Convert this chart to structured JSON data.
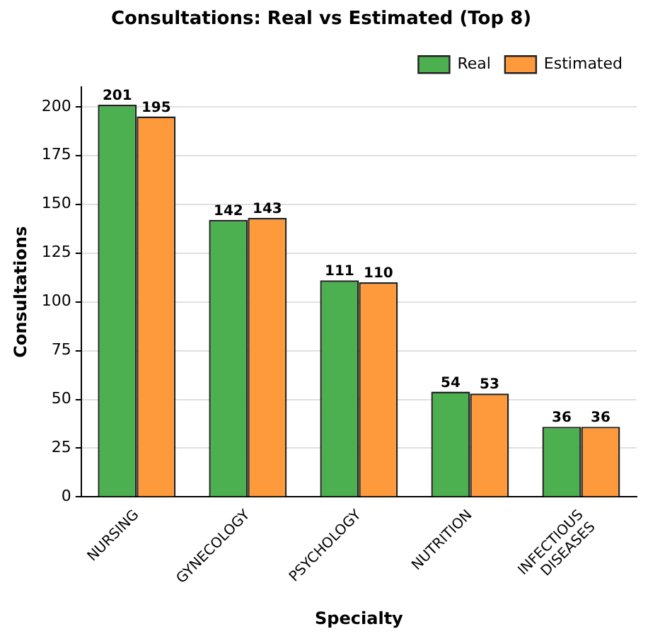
{
  "chart_data": {
    "type": "bar",
    "title": "Consultations: Real vs Estimated (Top 8)",
    "xlabel": "Specialty",
    "ylabel": "Consultations",
    "categories": [
      "NURSING",
      "GYNECOLOGY",
      "PSYCHOLOGY",
      "NUTRITION",
      "INFECTIOUS DISEASES"
    ],
    "series": [
      {
        "name": "Real",
        "color": "#4caf50",
        "values": [
          201,
          142,
          111,
          54,
          36
        ]
      },
      {
        "name": "Estimated",
        "color": "#ff9a3c",
        "values": [
          195,
          143,
          110,
          53,
          36
        ]
      }
    ],
    "ylim": [
      0,
      210
    ],
    "yticks": [
      0,
      25,
      50,
      75,
      100,
      125,
      150,
      175,
      200
    ],
    "grid": "y",
    "legend": "top right",
    "data_labels": true
  }
}
